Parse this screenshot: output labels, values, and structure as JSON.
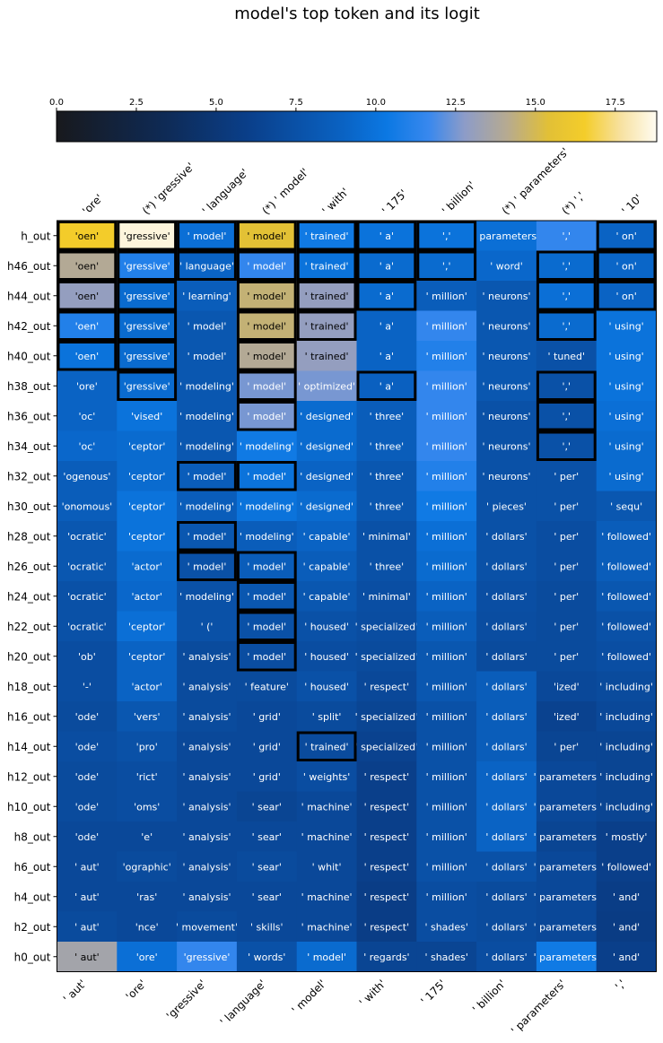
{
  "chart_data": {
    "type": "heatmap",
    "title": "model's top token and its logit",
    "top_labels": [
      "'ore'",
      "(*) 'gressive'",
      "' language'",
      "(*) ' model'",
      "' with'",
      "' 175'",
      "' billion'",
      "(*) ' parameters'",
      "(*) ','",
      "' 10'"
    ],
    "bottom_labels": [
      "' aut'",
      "'ore'",
      "'gressive'",
      "' language'",
      "' model'",
      "' with'",
      "' 175'",
      "' billion'",
      "' parameters'",
      "','"
    ],
    "rows": [
      "h_out",
      "h46_out",
      "h44_out",
      "h42_out",
      "h40_out",
      "h38_out",
      "h36_out",
      "h34_out",
      "h32_out",
      "h30_out",
      "h28_out",
      "h26_out",
      "h24_out",
      "h22_out",
      "h20_out",
      "h18_out",
      "h16_out",
      "h14_out",
      "h12_out",
      "h10_out",
      "h8_out",
      "h6_out",
      "h4_out",
      "h2_out",
      "h0_out"
    ],
    "tokens": [
      [
        "'oen'",
        "'gressive'",
        "' model'",
        "' model'",
        "' trained'",
        "' a'",
        "','",
        "' parameters'",
        "','",
        "' on'"
      ],
      [
        "'oen'",
        "'gressive'",
        "' language'",
        "' model'",
        "' trained'",
        "' a'",
        "','",
        "' word'",
        "','",
        "' on'"
      ],
      [
        "'oen'",
        "'gressive'",
        "' learning'",
        "' model'",
        "' trained'",
        "' a'",
        "' million'",
        "' neurons'",
        "','",
        "' on'"
      ],
      [
        "'oen'",
        "'gressive'",
        "' model'",
        "' model'",
        "' trained'",
        "' a'",
        "' million'",
        "' neurons'",
        "','",
        "' using'"
      ],
      [
        "'oen'",
        "'gressive'",
        "' model'",
        "' model'",
        "' trained'",
        "' a'",
        "' million'",
        "' neurons'",
        "' tuned'",
        "' using'"
      ],
      [
        "'ore'",
        "'gressive'",
        "' modeling'",
        "' model'",
        "' optimized'",
        "' a'",
        "' million'",
        "' neurons'",
        "','",
        "' using'"
      ],
      [
        "'oc'",
        "'vised'",
        "' modeling'",
        "' model'",
        "' designed'",
        "' three'",
        "' million'",
        "' neurons'",
        "','",
        "' using'"
      ],
      [
        "'oc'",
        "'ceptor'",
        "' modeling'",
        "' modeling'",
        "' designed'",
        "' three'",
        "' million'",
        "' neurons'",
        "','",
        "' using'"
      ],
      [
        "'ogenous'",
        "'ceptor'",
        "' model'",
        "' model'",
        "' designed'",
        "' three'",
        "' million'",
        "' neurons'",
        "' per'",
        "' using'"
      ],
      [
        "'onomous'",
        "'ceptor'",
        "' modeling'",
        "' modeling'",
        "' designed'",
        "' three'",
        "' million'",
        "' pieces'",
        "' per'",
        "' sequ'"
      ],
      [
        "'ocratic'",
        "'ceptor'",
        "' model'",
        "' modeling'",
        "' capable'",
        "' minimal'",
        "' million'",
        "' dollars'",
        "' per'",
        "' followed'"
      ],
      [
        "'ocratic'",
        "'actor'",
        "' model'",
        "' model'",
        "' capable'",
        "' three'",
        "' million'",
        "' dollars'",
        "' per'",
        "' followed'"
      ],
      [
        "'ocratic'",
        "'actor'",
        "' modeling'",
        "' model'",
        "' capable'",
        "' minimal'",
        "' million'",
        "' dollars'",
        "' per'",
        "' followed'"
      ],
      [
        "'ocratic'",
        "'ceptor'",
        "' ('",
        "' model'",
        "' housed'",
        "' specialized'",
        "' million'",
        "' dollars'",
        "' per'",
        "' followed'"
      ],
      [
        "'ob'",
        "'ceptor'",
        "' analysis'",
        "' model'",
        "' housed'",
        "' specialized'",
        "' million'",
        "' dollars'",
        "' per'",
        "' followed'"
      ],
      [
        "'-'",
        "'actor'",
        "' analysis'",
        "' feature'",
        "' housed'",
        "' respect'",
        "' million'",
        "' dollars'",
        "'ized'",
        "' including'"
      ],
      [
        "'ode'",
        "'vers'",
        "' analysis'",
        "' grid'",
        "' split'",
        "' specialized'",
        "' million'",
        "' dollars'",
        "'ized'",
        "' including'"
      ],
      [
        "'ode'",
        "'pro'",
        "' analysis'",
        "' grid'",
        "' trained'",
        "' specialized'",
        "' million'",
        "' dollars'",
        "' per'",
        "' including'"
      ],
      [
        "'ode'",
        "'rict'",
        "' analysis'",
        "' grid'",
        "' weights'",
        "' respect'",
        "' million'",
        "' dollars'",
        "' parameters'",
        "' including'"
      ],
      [
        "'ode'",
        "'oms'",
        "' analysis'",
        "' sear'",
        "' machine'",
        "' respect'",
        "' million'",
        "' dollars'",
        "' parameters'",
        "' including'"
      ],
      [
        "'ode'",
        "'e'",
        "' analysis'",
        "' sear'",
        "' machine'",
        "' respect'",
        "' million'",
        "' dollars'",
        "' parameters'",
        "' mostly'"
      ],
      [
        "' aut'",
        "'ographic'",
        "' analysis'",
        "' sear'",
        "' whit'",
        "' respect'",
        "' million'",
        "' dollars'",
        "' parameters'",
        "' followed'"
      ],
      [
        "' aut'",
        "'ras'",
        "' analysis'",
        "' sear'",
        "' machine'",
        "' respect'",
        "' million'",
        "' dollars'",
        "' parameters'",
        "' and'"
      ],
      [
        "' aut'",
        "'nce'",
        "' movement'",
        "' skills'",
        "' machine'",
        "' respect'",
        "' shades'",
        "' dollars'",
        "' parameters'",
        "' and'"
      ],
      [
        "' aut'",
        "'ore'",
        "'gressive'",
        "' words'",
        "' model'",
        "' regards'",
        "' shades'",
        "' dollars'",
        "' parameters'",
        "' and'"
      ]
    ],
    "values": [
      [
        16.5,
        18.5,
        9.8,
        15.5,
        10.5,
        10.0,
        10.0,
        9.8,
        11.5,
        9.0
      ],
      [
        14.0,
        11.0,
        9.0,
        11.5,
        10.0,
        9.5,
        9.5,
        9.3,
        9.5,
        9.2
      ],
      [
        13.0,
        9.5,
        8.5,
        14.5,
        13.0,
        9.5,
        8.5,
        8.0,
        9.8,
        9.0
      ],
      [
        11.0,
        9.5,
        8.0,
        14.5,
        13.0,
        9.0,
        11.5,
        8.0,
        9.5,
        10.0
      ],
      [
        10.0,
        9.5,
        8.0,
        14.0,
        13.0,
        9.0,
        11.0,
        8.0,
        7.5,
        10.0
      ],
      [
        9.0,
        9.5,
        8.0,
        12.5,
        12.5,
        8.8,
        11.5,
        8.0,
        7.5,
        10.0
      ],
      [
        9.0,
        10.0,
        8.0,
        12.5,
        9.5,
        8.5,
        11.5,
        7.5,
        7.5,
        9.8
      ],
      [
        9.3,
        9.5,
        8.0,
        10.5,
        9.5,
        8.5,
        11.5,
        7.5,
        7.5,
        9.5
      ],
      [
        8.5,
        9.5,
        8.5,
        10.0,
        9.0,
        8.0,
        11.0,
        7.5,
        7.5,
        9.5
      ],
      [
        8.5,
        10.0,
        8.5,
        10.0,
        9.5,
        8.0,
        10.5,
        7.5,
        7.5,
        8.0
      ],
      [
        8.0,
        10.0,
        8.0,
        8.5,
        9.0,
        7.5,
        9.8,
        7.5,
        7.2,
        8.5
      ],
      [
        8.0,
        9.5,
        7.5,
        8.5,
        8.5,
        7.5,
        9.5,
        7.5,
        7.2,
        8.5
      ],
      [
        7.5,
        9.3,
        7.5,
        8.0,
        8.0,
        7.3,
        9.0,
        7.3,
        7.0,
        8.0
      ],
      [
        7.5,
        9.8,
        7.5,
        7.5,
        7.5,
        7.2,
        8.5,
        7.2,
        7.0,
        7.5
      ],
      [
        7.2,
        9.0,
        7.0,
        7.2,
        7.2,
        7.0,
        8.0,
        7.0,
        7.0,
        7.3
      ],
      [
        7.2,
        9.0,
        7.0,
        7.0,
        7.5,
        6.8,
        8.0,
        8.5,
        6.8,
        7.0
      ],
      [
        7.0,
        8.0,
        7.0,
        6.8,
        7.0,
        6.5,
        7.5,
        8.5,
        6.3,
        6.8
      ],
      [
        7.2,
        7.5,
        6.8,
        6.8,
        7.0,
        6.3,
        7.5,
        8.5,
        6.5,
        6.5
      ],
      [
        7.0,
        7.2,
        6.8,
        6.8,
        7.2,
        6.0,
        7.5,
        9.0,
        6.8,
        6.5
      ],
      [
        7.0,
        7.2,
        6.8,
        6.5,
        6.8,
        6.0,
        7.5,
        9.0,
        6.8,
        6.5
      ],
      [
        6.8,
        6.8,
        6.8,
        6.8,
        6.8,
        6.0,
        7.5,
        9.0,
        6.5,
        6.0
      ],
      [
        6.8,
        7.0,
        6.8,
        7.0,
        6.8,
        6.0,
        7.5,
        7.5,
        6.8,
        6.0
      ],
      [
        6.8,
        6.8,
        6.8,
        6.8,
        6.8,
        5.8,
        7.2,
        7.0,
        6.8,
        5.8
      ],
      [
        7.0,
        6.8,
        7.0,
        6.8,
        6.8,
        5.8,
        7.2,
        7.0,
        6.8,
        5.7
      ],
      [
        13.5,
        9.8,
        11.5,
        7.5,
        9.5,
        6.5,
        6.5,
        7.2,
        10.5,
        6.0
      ]
    ],
    "correct": [
      [
        true,
        true,
        true,
        true,
        true,
        true,
        true,
        false,
        false,
        true
      ],
      [
        true,
        true,
        true,
        true,
        true,
        true,
        true,
        false,
        true,
        true
      ],
      [
        true,
        true,
        false,
        true,
        true,
        true,
        false,
        false,
        true,
        true
      ],
      [
        true,
        true,
        false,
        true,
        true,
        false,
        false,
        false,
        true,
        false
      ],
      [
        true,
        true,
        false,
        true,
        false,
        false,
        false,
        false,
        false,
        false
      ],
      [
        false,
        true,
        false,
        true,
        false,
        true,
        false,
        false,
        true,
        false
      ],
      [
        false,
        false,
        false,
        true,
        false,
        false,
        false,
        false,
        true,
        false
      ],
      [
        false,
        false,
        false,
        false,
        false,
        false,
        false,
        false,
        true,
        false
      ],
      [
        false,
        false,
        true,
        true,
        false,
        false,
        false,
        false,
        false,
        false
      ],
      [
        false,
        false,
        false,
        false,
        false,
        false,
        false,
        false,
        false,
        false
      ],
      [
        false,
        false,
        true,
        false,
        false,
        false,
        false,
        false,
        false,
        false
      ],
      [
        false,
        false,
        true,
        true,
        false,
        false,
        false,
        false,
        false,
        false
      ],
      [
        false,
        false,
        false,
        true,
        false,
        false,
        false,
        false,
        false,
        false
      ],
      [
        false,
        false,
        false,
        true,
        false,
        false,
        false,
        false,
        false,
        false
      ],
      [
        false,
        false,
        false,
        true,
        false,
        false,
        false,
        false,
        false,
        false
      ],
      [
        false,
        false,
        false,
        false,
        false,
        false,
        false,
        false,
        false,
        false
      ],
      [
        false,
        false,
        false,
        false,
        false,
        false,
        false,
        false,
        false,
        false
      ],
      [
        false,
        false,
        false,
        false,
        true,
        false,
        false,
        false,
        false,
        false
      ],
      [
        false,
        false,
        false,
        false,
        false,
        false,
        false,
        false,
        false,
        false
      ],
      [
        false,
        false,
        false,
        false,
        false,
        false,
        false,
        false,
        false,
        false
      ],
      [
        false,
        false,
        false,
        false,
        false,
        false,
        false,
        false,
        false,
        false
      ],
      [
        false,
        false,
        false,
        false,
        false,
        false,
        false,
        false,
        false,
        false
      ],
      [
        false,
        false,
        false,
        false,
        false,
        false,
        false,
        false,
        false,
        false
      ],
      [
        false,
        false,
        false,
        false,
        false,
        false,
        false,
        false,
        false,
        false
      ],
      [
        false,
        false,
        false,
        false,
        false,
        false,
        false,
        false,
        false,
        false
      ]
    ],
    "colorbar": {
      "range": [
        0,
        18.8
      ],
      "ticks": [
        "0.0",
        "2.5",
        "5.0",
        "7.5",
        "10.0",
        "12.5",
        "15.0",
        "17.5"
      ]
    },
    "colormap_stops": [
      [
        0.0,
        "#18191d"
      ],
      [
        0.18,
        "#0e2a55"
      ],
      [
        0.32,
        "#0a3f8a"
      ],
      [
        0.48,
        "#0a63c4"
      ],
      [
        0.55,
        "#0b78e3"
      ],
      [
        0.62,
        "#3888ee"
      ],
      [
        0.68,
        "#8d9cc8"
      ],
      [
        0.75,
        "#b6aa91"
      ],
      [
        0.82,
        "#e2c036"
      ],
      [
        0.88,
        "#f4cd2a"
      ],
      [
        0.94,
        "#f7e1a0"
      ],
      [
        1.0,
        "#fffcf2"
      ]
    ]
  }
}
